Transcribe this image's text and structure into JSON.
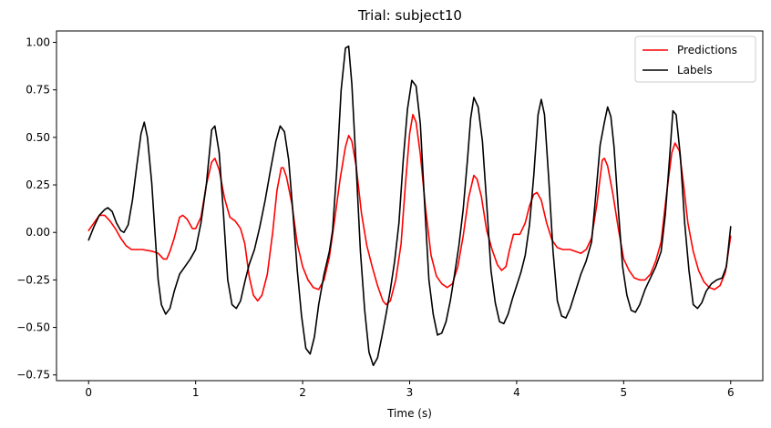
{
  "chart_data": {
    "type": "line",
    "title": "Trial: subject10",
    "xlabel": "Time (s)",
    "ylabel": "",
    "xlim": [
      -0.3,
      6.3
    ],
    "ylim": [
      -0.78,
      1.06
    ],
    "xticks": [
      0,
      1,
      2,
      3,
      4,
      5,
      6
    ],
    "xtick_labels": [
      "0",
      "1",
      "2",
      "3",
      "4",
      "5",
      "6"
    ],
    "yticks": [
      -0.75,
      -0.5,
      -0.25,
      0.0,
      0.25,
      0.5,
      0.75,
      1.0
    ],
    "ytick_labels": [
      "−0.75",
      "−0.50",
      "−0.25",
      "0.00",
      "0.25",
      "0.50",
      "0.75",
      "1.00"
    ],
    "grid": false,
    "legend_position": "top-right",
    "series": [
      {
        "name": "Predictions",
        "color": "#ff0000",
        "points": [
          [
            0.0,
            0.01
          ],
          [
            0.05,
            0.05
          ],
          [
            0.1,
            0.09
          ],
          [
            0.15,
            0.09
          ],
          [
            0.2,
            0.06
          ],
          [
            0.25,
            0.02
          ],
          [
            0.3,
            -0.03
          ],
          [
            0.35,
            -0.07
          ],
          [
            0.4,
            -0.09
          ],
          [
            0.5,
            -0.09
          ],
          [
            0.6,
            -0.1
          ],
          [
            0.65,
            -0.11
          ],
          [
            0.7,
            -0.14
          ],
          [
            0.73,
            -0.14
          ],
          [
            0.76,
            -0.1
          ],
          [
            0.8,
            -0.03
          ],
          [
            0.85,
            0.08
          ],
          [
            0.88,
            0.09
          ],
          [
            0.92,
            0.07
          ],
          [
            0.97,
            0.02
          ],
          [
            1.0,
            0.02
          ],
          [
            1.05,
            0.08
          ],
          [
            1.1,
            0.25
          ],
          [
            1.15,
            0.37
          ],
          [
            1.18,
            0.39
          ],
          [
            1.22,
            0.33
          ],
          [
            1.27,
            0.18
          ],
          [
            1.32,
            0.08
          ],
          [
            1.37,
            0.06
          ],
          [
            1.42,
            0.02
          ],
          [
            1.46,
            -0.06
          ],
          [
            1.5,
            -0.23
          ],
          [
            1.54,
            -0.33
          ],
          [
            1.58,
            -0.36
          ],
          [
            1.62,
            -0.33
          ],
          [
            1.67,
            -0.22
          ],
          [
            1.72,
            0.0
          ],
          [
            1.76,
            0.22
          ],
          [
            1.8,
            0.34
          ],
          [
            1.82,
            0.34
          ],
          [
            1.85,
            0.29
          ],
          [
            1.9,
            0.15
          ],
          [
            1.95,
            -0.06
          ],
          [
            2.0,
            -0.18
          ],
          [
            2.05,
            -0.25
          ],
          [
            2.1,
            -0.29
          ],
          [
            2.15,
            -0.3
          ],
          [
            2.2,
            -0.25
          ],
          [
            2.25,
            -0.13
          ],
          [
            2.3,
            0.07
          ],
          [
            2.35,
            0.28
          ],
          [
            2.4,
            0.45
          ],
          [
            2.43,
            0.51
          ],
          [
            2.46,
            0.48
          ],
          [
            2.5,
            0.35
          ],
          [
            2.55,
            0.1
          ],
          [
            2.6,
            -0.07
          ],
          [
            2.65,
            -0.18
          ],
          [
            2.7,
            -0.28
          ],
          [
            2.75,
            -0.36
          ],
          [
            2.78,
            -0.38
          ],
          [
            2.82,
            -0.36
          ],
          [
            2.87,
            -0.25
          ],
          [
            2.92,
            -0.06
          ],
          [
            2.96,
            0.25
          ],
          [
            3.0,
            0.52
          ],
          [
            3.03,
            0.62
          ],
          [
            3.06,
            0.58
          ],
          [
            3.1,
            0.41
          ],
          [
            3.15,
            0.12
          ],
          [
            3.2,
            -0.12
          ],
          [
            3.25,
            -0.23
          ],
          [
            3.3,
            -0.27
          ],
          [
            3.35,
            -0.29
          ],
          [
            3.4,
            -0.27
          ],
          [
            3.45,
            -0.18
          ],
          [
            3.5,
            -0.02
          ],
          [
            3.55,
            0.18
          ],
          [
            3.6,
            0.3
          ],
          [
            3.63,
            0.28
          ],
          [
            3.67,
            0.19
          ],
          [
            3.72,
            0.01
          ],
          [
            3.77,
            -0.09
          ],
          [
            3.82,
            -0.17
          ],
          [
            3.86,
            -0.2
          ],
          [
            3.9,
            -0.18
          ],
          [
            3.93,
            -0.1
          ],
          [
            3.97,
            -0.01
          ],
          [
            4.03,
            -0.01
          ],
          [
            4.08,
            0.05
          ],
          [
            4.12,
            0.14
          ],
          [
            4.16,
            0.2
          ],
          [
            4.19,
            0.21
          ],
          [
            4.23,
            0.17
          ],
          [
            4.28,
            0.05
          ],
          [
            4.33,
            -0.04
          ],
          [
            4.38,
            -0.08
          ],
          [
            4.43,
            -0.09
          ],
          [
            4.5,
            -0.09
          ],
          [
            4.55,
            -0.1
          ],
          [
            4.6,
            -0.11
          ],
          [
            4.65,
            -0.09
          ],
          [
            4.7,
            -0.03
          ],
          [
            4.75,
            0.15
          ],
          [
            4.8,
            0.38
          ],
          [
            4.82,
            0.39
          ],
          [
            4.85,
            0.35
          ],
          [
            4.9,
            0.2
          ],
          [
            4.95,
            0.02
          ],
          [
            5.0,
            -0.14
          ],
          [
            5.05,
            -0.2
          ],
          [
            5.1,
            -0.24
          ],
          [
            5.15,
            -0.25
          ],
          [
            5.2,
            -0.25
          ],
          [
            5.25,
            -0.22
          ],
          [
            5.3,
            -0.15
          ],
          [
            5.35,
            -0.05
          ],
          [
            5.4,
            0.2
          ],
          [
            5.45,
            0.42
          ],
          [
            5.48,
            0.47
          ],
          [
            5.52,
            0.43
          ],
          [
            5.56,
            0.25
          ],
          [
            5.6,
            0.05
          ],
          [
            5.65,
            -0.1
          ],
          [
            5.7,
            -0.2
          ],
          [
            5.75,
            -0.26
          ],
          [
            5.8,
            -0.29
          ],
          [
            5.85,
            -0.3
          ],
          [
            5.9,
            -0.28
          ],
          [
            5.95,
            -0.21
          ],
          [
            6.0,
            -0.02
          ]
        ]
      },
      {
        "name": "Labels",
        "color": "#000000",
        "points": [
          [
            0.0,
            -0.04
          ],
          [
            0.05,
            0.03
          ],
          [
            0.1,
            0.09
          ],
          [
            0.15,
            0.12
          ],
          [
            0.18,
            0.13
          ],
          [
            0.22,
            0.11
          ],
          [
            0.26,
            0.05
          ],
          [
            0.3,
            0.01
          ],
          [
            0.33,
            0.0
          ],
          [
            0.37,
            0.04
          ],
          [
            0.41,
            0.17
          ],
          [
            0.45,
            0.35
          ],
          [
            0.49,
            0.52
          ],
          [
            0.52,
            0.58
          ],
          [
            0.55,
            0.5
          ],
          [
            0.59,
            0.26
          ],
          [
            0.62,
            0.0
          ],
          [
            0.65,
            -0.25
          ],
          [
            0.68,
            -0.38
          ],
          [
            0.72,
            -0.43
          ],
          [
            0.76,
            -0.4
          ],
          [
            0.8,
            -0.31
          ],
          [
            0.85,
            -0.22
          ],
          [
            0.9,
            -0.18
          ],
          [
            0.95,
            -0.14
          ],
          [
            1.0,
            -0.09
          ],
          [
            1.05,
            0.05
          ],
          [
            1.1,
            0.25
          ],
          [
            1.15,
            0.54
          ],
          [
            1.18,
            0.56
          ],
          [
            1.22,
            0.42
          ],
          [
            1.26,
            0.1
          ],
          [
            1.3,
            -0.25
          ],
          [
            1.34,
            -0.38
          ],
          [
            1.38,
            -0.4
          ],
          [
            1.42,
            -0.36
          ],
          [
            1.46,
            -0.26
          ],
          [
            1.5,
            -0.17
          ],
          [
            1.55,
            -0.09
          ],
          [
            1.6,
            0.03
          ],
          [
            1.65,
            0.17
          ],
          [
            1.7,
            0.33
          ],
          [
            1.75,
            0.48
          ],
          [
            1.79,
            0.56
          ],
          [
            1.83,
            0.53
          ],
          [
            1.87,
            0.38
          ],
          [
            1.91,
            0.1
          ],
          [
            1.95,
            -0.2
          ],
          [
            1.99,
            -0.44
          ],
          [
            2.03,
            -0.61
          ],
          [
            2.07,
            -0.64
          ],
          [
            2.11,
            -0.55
          ],
          [
            2.15,
            -0.38
          ],
          [
            2.2,
            -0.22
          ],
          [
            2.25,
            -0.1
          ],
          [
            2.28,
            0.01
          ],
          [
            2.32,
            0.34
          ],
          [
            2.36,
            0.75
          ],
          [
            2.4,
            0.97
          ],
          [
            2.43,
            0.98
          ],
          [
            2.46,
            0.78
          ],
          [
            2.5,
            0.35
          ],
          [
            2.54,
            -0.1
          ],
          [
            2.58,
            -0.41
          ],
          [
            2.62,
            -0.63
          ],
          [
            2.66,
            -0.7
          ],
          [
            2.7,
            -0.66
          ],
          [
            2.74,
            -0.55
          ],
          [
            2.78,
            -0.43
          ],
          [
            2.82,
            -0.3
          ],
          [
            2.86,
            -0.15
          ],
          [
            2.9,
            0.05
          ],
          [
            2.94,
            0.38
          ],
          [
            2.98,
            0.65
          ],
          [
            3.02,
            0.8
          ],
          [
            3.06,
            0.77
          ],
          [
            3.1,
            0.57
          ],
          [
            3.14,
            0.15
          ],
          [
            3.18,
            -0.25
          ],
          [
            3.22,
            -0.43
          ],
          [
            3.26,
            -0.54
          ],
          [
            3.3,
            -0.53
          ],
          [
            3.34,
            -0.47
          ],
          [
            3.38,
            -0.36
          ],
          [
            3.42,
            -0.22
          ],
          [
            3.46,
            -0.07
          ],
          [
            3.5,
            0.12
          ],
          [
            3.54,
            0.38
          ],
          [
            3.57,
            0.6
          ],
          [
            3.6,
            0.71
          ],
          [
            3.64,
            0.66
          ],
          [
            3.68,
            0.48
          ],
          [
            3.72,
            0.15
          ],
          [
            3.76,
            -0.2
          ],
          [
            3.8,
            -0.37
          ],
          [
            3.84,
            -0.47
          ],
          [
            3.88,
            -0.48
          ],
          [
            3.92,
            -0.43
          ],
          [
            3.96,
            -0.35
          ],
          [
            4.0,
            -0.28
          ],
          [
            4.04,
            -0.21
          ],
          [
            4.08,
            -0.12
          ],
          [
            4.12,
            0.04
          ],
          [
            4.16,
            0.3
          ],
          [
            4.2,
            0.62
          ],
          [
            4.23,
            0.7
          ],
          [
            4.26,
            0.62
          ],
          [
            4.3,
            0.28
          ],
          [
            4.34,
            -0.1
          ],
          [
            4.38,
            -0.36
          ],
          [
            4.42,
            -0.44
          ],
          [
            4.46,
            -0.45
          ],
          [
            4.5,
            -0.4
          ],
          [
            4.55,
            -0.31
          ],
          [
            4.6,
            -0.22
          ],
          [
            4.65,
            -0.15
          ],
          [
            4.7,
            -0.05
          ],
          [
            4.74,
            0.2
          ],
          [
            4.78,
            0.46
          ],
          [
            4.82,
            0.58
          ],
          [
            4.85,
            0.66
          ],
          [
            4.88,
            0.61
          ],
          [
            4.91,
            0.45
          ],
          [
            4.95,
            0.12
          ],
          [
            4.99,
            -0.18
          ],
          [
            5.03,
            -0.33
          ],
          [
            5.07,
            -0.41
          ],
          [
            5.11,
            -0.42
          ],
          [
            5.15,
            -0.38
          ],
          [
            5.2,
            -0.3
          ],
          [
            5.25,
            -0.24
          ],
          [
            5.3,
            -0.18
          ],
          [
            5.35,
            -0.1
          ],
          [
            5.39,
            0.1
          ],
          [
            5.43,
            0.4
          ],
          [
            5.46,
            0.64
          ],
          [
            5.49,
            0.62
          ],
          [
            5.53,
            0.4
          ],
          [
            5.57,
            0.05
          ],
          [
            5.61,
            -0.2
          ],
          [
            5.65,
            -0.38
          ],
          [
            5.69,
            -0.4
          ],
          [
            5.73,
            -0.37
          ],
          [
            5.77,
            -0.31
          ],
          [
            5.82,
            -0.27
          ],
          [
            5.87,
            -0.25
          ],
          [
            5.92,
            -0.24
          ],
          [
            5.96,
            -0.18
          ],
          [
            6.0,
            0.03
          ]
        ]
      }
    ]
  }
}
